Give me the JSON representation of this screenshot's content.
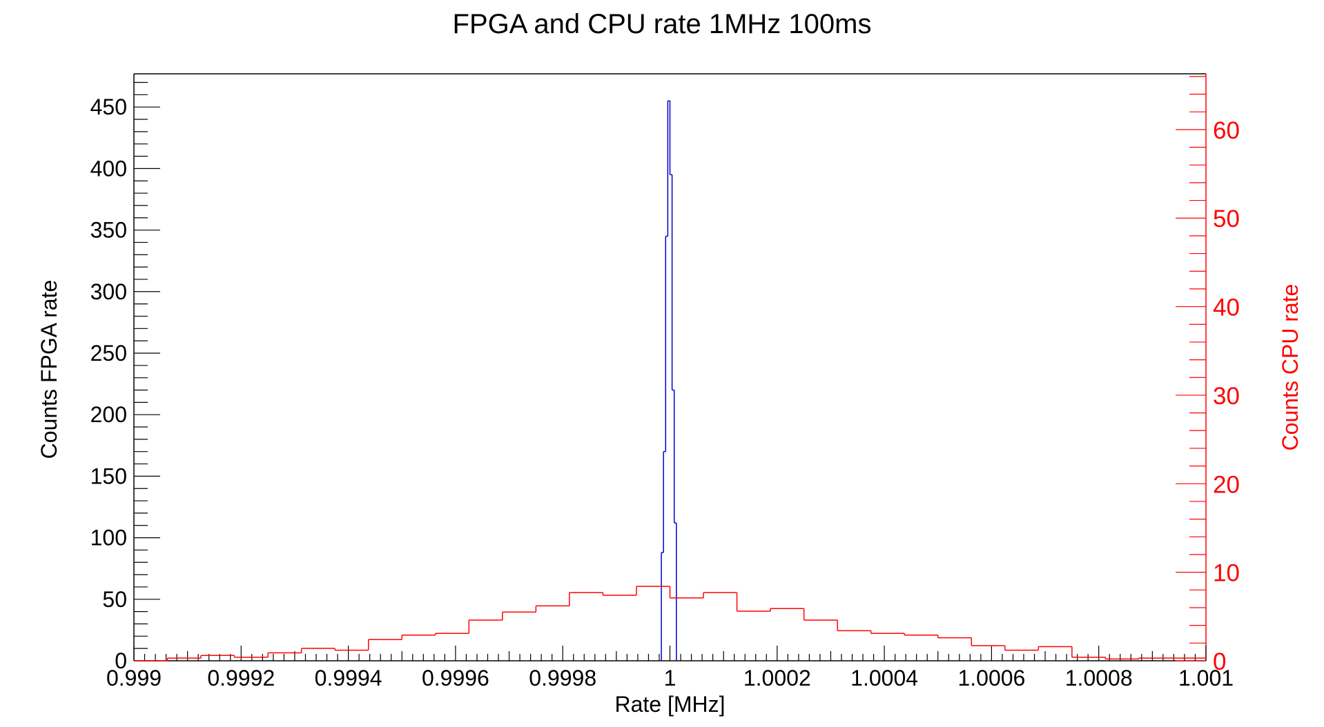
{
  "chart_data": {
    "type": "histogram",
    "title": "FPGA and CPU rate 1MHz 100ms",
    "xlabel": "Rate [MHz]",
    "ylabel_left": "Counts FPGA rate",
    "ylabel_right": "Counts CPU rate",
    "xlim": [
      0.999,
      1.001
    ],
    "ylim_left": [
      0,
      477
    ],
    "ylim_right": [
      0,
      66.3
    ],
    "x_ticks": [
      "0.999",
      "0.9992",
      "0.9994",
      "0.9996",
      "0.9998",
      "1",
      "1.0002",
      "1.0004",
      "1.0006",
      "1.0008",
      "1.001"
    ],
    "x_tick_values": [
      0.999,
      0.9992,
      0.9994,
      0.9996,
      0.9998,
      1.0,
      1.0002,
      1.0004,
      1.0006,
      1.0008,
      1.001
    ],
    "y_left_ticks": [
      "0",
      "50",
      "100",
      "150",
      "200",
      "250",
      "300",
      "350",
      "400",
      "450"
    ],
    "y_left_tick_values": [
      0,
      50,
      100,
      150,
      200,
      250,
      300,
      350,
      400,
      450
    ],
    "y_right_ticks": [
      "0",
      "10",
      "20",
      "30",
      "40",
      "50",
      "60"
    ],
    "y_right_tick_values": [
      0,
      10,
      20,
      30,
      40,
      50,
      60
    ],
    "grid": false,
    "colors": {
      "fpga": "#0000cc",
      "cpu": "#ff0000",
      "right_axis": "#ff0000",
      "left_axis": "#000000"
    },
    "series": [
      {
        "axis": "left",
        "color": "#0000cc",
        "bin_edges": [
          0.999984,
          0.999988,
          0.999992,
          0.999996,
          1.0,
          1.000004,
          1.000008,
          1.000012
        ],
        "values": [
          88,
          170,
          345,
          455,
          395,
          220,
          112
        ]
      },
      {
        "axis": "right",
        "color": "#ff0000",
        "bin_edges": [
          0.999,
          0.9990625,
          0.999125,
          0.9991875,
          0.99925,
          0.9993125,
          0.999375,
          0.9994375,
          0.9995,
          0.9995625,
          0.999625,
          0.9996875,
          0.99975,
          0.9998125,
          0.999875,
          0.9999375,
          1.0,
          1.0000625,
          1.000125,
          1.0001875,
          1.00025,
          1.0003125,
          1.000375,
          1.0004375,
          1.0005,
          1.0005625,
          1.000625,
          1.0006875,
          1.00075,
          1.0008125,
          1.000875,
          1.0009375,
          1.001
        ],
        "values": [
          0,
          0.3,
          0.6,
          0.4,
          0.9,
          1.4,
          1.2,
          2.4,
          2.9,
          3.1,
          4.6,
          5.5,
          6.2,
          7.7,
          7.4,
          8.4,
          7.1,
          7.7,
          5.6,
          5.9,
          4.6,
          3.4,
          3.1,
          2.9,
          2.6,
          1.7,
          1.2,
          1.6,
          0.4,
          0.2,
          0.3,
          0.3
        ]
      }
    ]
  }
}
